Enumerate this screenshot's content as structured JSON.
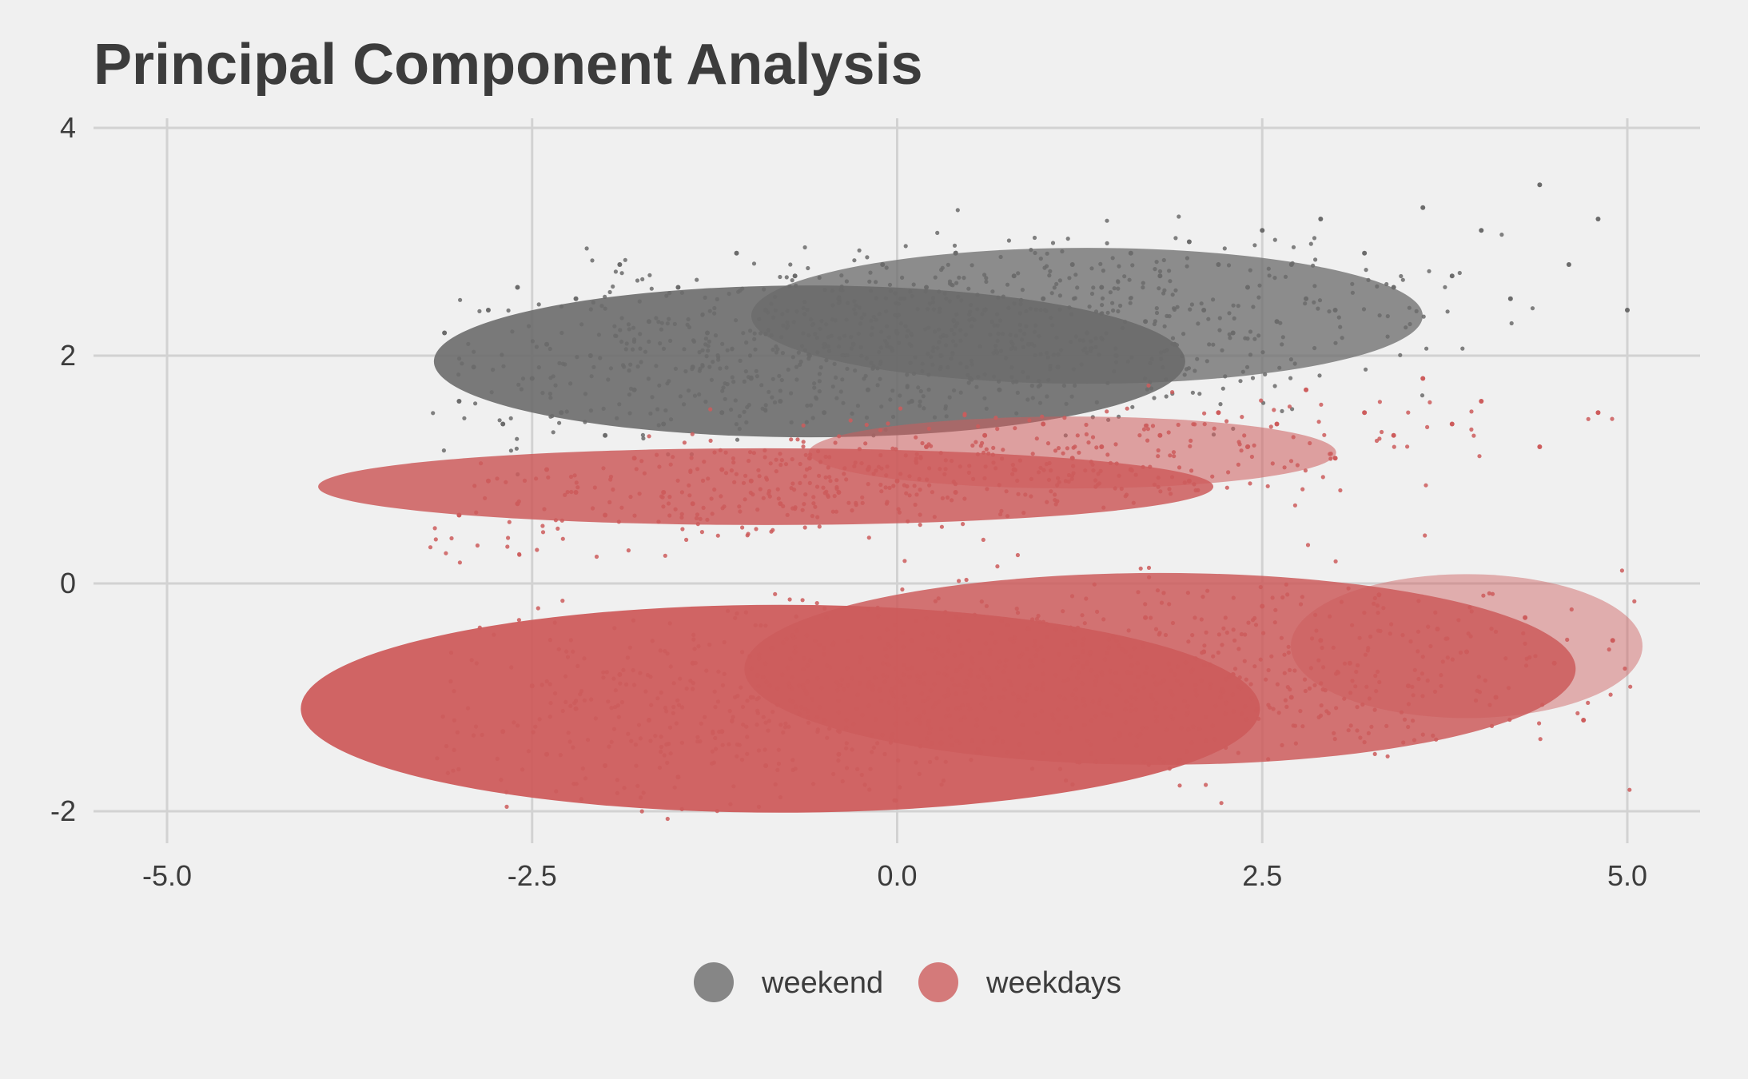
{
  "chart_data": {
    "type": "scatter",
    "title": "Principal Component Analysis",
    "xlabel": "",
    "ylabel": "",
    "xlim": [
      -5.5,
      5.5
    ],
    "ylim": [
      -2.3,
      4.3
    ],
    "x_ticks": [
      -5.0,
      -2.5,
      0.0,
      2.5,
      5.0
    ],
    "x_tick_labels": [
      "-5.0",
      "-2.5",
      "0.0",
      "2.5",
      "5.0"
    ],
    "y_ticks": [
      -2,
      0,
      2,
      4
    ],
    "y_tick_labels": [
      "-2",
      "0",
      "2",
      "4"
    ],
    "grid": true,
    "legend_position": "bottom",
    "series": [
      {
        "name": "weekend",
        "color": "#6b6b6b",
        "points": [
          [
            -3.1,
            2.2
          ],
          [
            -3.0,
            1.6
          ],
          [
            -2.9,
            1.9
          ],
          [
            -2.8,
            2.4
          ],
          [
            -2.7,
            1.4
          ],
          [
            -2.6,
            2.6
          ],
          [
            -2.5,
            1.8
          ],
          [
            -2.4,
            2.1
          ],
          [
            -2.3,
            1.5
          ],
          [
            -2.2,
            2.5
          ],
          [
            -2.1,
            2.0
          ],
          [
            -2.0,
            1.3
          ],
          [
            -1.9,
            2.8
          ],
          [
            -1.8,
            1.7
          ],
          [
            -1.7,
            2.3
          ],
          [
            -1.6,
            1.4
          ],
          [
            -1.5,
            2.6
          ],
          [
            -1.4,
            1.9
          ],
          [
            -1.3,
            2.2
          ],
          [
            -1.2,
            1.5
          ],
          [
            -1.1,
            2.9
          ],
          [
            -1.0,
            1.8
          ],
          [
            -0.9,
            2.4
          ],
          [
            -0.8,
            1.6
          ],
          [
            -0.7,
            2.7
          ],
          [
            -0.6,
            2.0
          ],
          [
            -0.5,
            1.5
          ],
          [
            -0.4,
            2.5
          ],
          [
            -0.3,
            2.1
          ],
          [
            -0.2,
            1.7
          ],
          [
            -0.1,
            2.8
          ],
          [
            0.0,
            2.2
          ],
          [
            0.1,
            1.6
          ],
          [
            0.2,
            2.6
          ],
          [
            0.3,
            2.0
          ],
          [
            0.4,
            2.9
          ],
          [
            0.5,
            1.8
          ],
          [
            0.6,
            2.4
          ],
          [
            0.7,
            1.7
          ],
          [
            0.8,
            2.7
          ],
          [
            0.9,
            2.1
          ],
          [
            1.0,
            2.5
          ],
          [
            1.1,
            1.9
          ],
          [
            1.2,
            2.8
          ],
          [
            1.3,
            2.2
          ],
          [
            1.4,
            2.6
          ],
          [
            1.5,
            2.0
          ],
          [
            1.6,
            2.9
          ],
          [
            1.7,
            2.3
          ],
          [
            1.8,
            2.7
          ],
          [
            1.9,
            2.1
          ],
          [
            2.0,
            3.0
          ],
          [
            2.1,
            2.4
          ],
          [
            2.2,
            2.8
          ],
          [
            2.3,
            2.2
          ],
          [
            2.4,
            2.6
          ],
          [
            2.5,
            3.1
          ],
          [
            2.6,
            2.3
          ],
          [
            2.7,
            2.8
          ],
          [
            2.8,
            2.5
          ],
          [
            2.9,
            3.2
          ],
          [
            3.0,
            2.4
          ],
          [
            3.2,
            2.9
          ],
          [
            3.4,
            2.6
          ],
          [
            3.6,
            3.3
          ],
          [
            3.8,
            2.7
          ],
          [
            4.0,
            3.1
          ],
          [
            4.2,
            2.5
          ],
          [
            4.4,
            3.5
          ],
          [
            4.6,
            2.8
          ],
          [
            4.8,
            3.2
          ],
          [
            5.0,
            2.4
          ]
        ]
      },
      {
        "name": "weekdays",
        "color": "#cd5c5c",
        "points": [
          [
            -3.0,
            0.6
          ],
          [
            -2.8,
            0.9
          ],
          [
            -2.6,
            0.7
          ],
          [
            -2.4,
            1.0
          ],
          [
            -2.2,
            0.8
          ],
          [
            -2.0,
            0.6
          ],
          [
            -1.8,
            1.1
          ],
          [
            -1.6,
            0.8
          ],
          [
            -1.4,
            0.7
          ],
          [
            -1.2,
            1.0
          ],
          [
            -1.0,
            0.9
          ],
          [
            -0.8,
            0.7
          ],
          [
            -0.6,
            1.1
          ],
          [
            -0.4,
            0.8
          ],
          [
            -0.2,
            1.0
          ],
          [
            0.0,
            0.9
          ],
          [
            0.2,
            1.2
          ],
          [
            0.4,
            0.8
          ],
          [
            0.6,
            1.3
          ],
          [
            0.8,
            1.0
          ],
          [
            1.0,
            1.4
          ],
          [
            1.2,
            1.1
          ],
          [
            1.4,
            1.2
          ],
          [
            1.6,
            1.0
          ],
          [
            1.8,
            1.3
          ],
          [
            2.0,
            0.9
          ],
          [
            2.2,
            1.5
          ],
          [
            2.4,
            1.2
          ],
          [
            2.6,
            1.4
          ],
          [
            2.8,
            1.7
          ],
          [
            3.0,
            1.1
          ],
          [
            3.2,
            1.5
          ],
          [
            3.4,
            1.3
          ],
          [
            3.6,
            1.8
          ],
          [
            3.8,
            1.4
          ],
          [
            4.0,
            1.6
          ],
          [
            4.4,
            1.2
          ],
          [
            4.8,
            1.5
          ],
          [
            -2.7,
            -1.3
          ],
          [
            -2.5,
            -0.9
          ],
          [
            -2.4,
            -1.5
          ],
          [
            -2.2,
            -1.1
          ],
          [
            -2.0,
            -1.6
          ],
          [
            -1.9,
            -0.8
          ],
          [
            -1.7,
            -1.2
          ],
          [
            -1.5,
            -1.7
          ],
          [
            -1.4,
            -0.7
          ],
          [
            -1.2,
            -1.3
          ],
          [
            -1.0,
            -1.0
          ],
          [
            -0.9,
            -1.6
          ],
          [
            -0.7,
            -0.6
          ],
          [
            -0.5,
            -1.2
          ],
          [
            -0.4,
            -1.5
          ],
          [
            -0.2,
            -0.9
          ],
          [
            0.0,
            -1.1
          ],
          [
            0.1,
            -0.5
          ],
          [
            0.3,
            -1.4
          ],
          [
            0.5,
            -0.8
          ],
          [
            0.7,
            -1.0
          ],
          [
            0.9,
            -0.4
          ],
          [
            1.1,
            -1.3
          ],
          [
            1.3,
            -0.7
          ],
          [
            1.5,
            -0.9
          ],
          [
            1.7,
            -0.3
          ],
          [
            1.9,
            -1.1
          ],
          [
            2.1,
            -0.6
          ],
          [
            2.3,
            -0.8
          ],
          [
            2.5,
            -0.2
          ],
          [
            2.7,
            -1.0
          ],
          [
            2.9,
            -0.5
          ],
          [
            3.1,
            -0.7
          ],
          [
            3.3,
            -0.1
          ],
          [
            3.5,
            -0.9
          ],
          [
            3.7,
            -0.4
          ],
          [
            3.9,
            -0.6
          ],
          [
            4.1,
            -1.0
          ],
          [
            4.3,
            -0.3
          ],
          [
            4.5,
            -0.7
          ],
          [
            4.7,
            -1.2
          ],
          [
            4.9,
            -0.5
          ]
        ]
      }
    ]
  }
}
